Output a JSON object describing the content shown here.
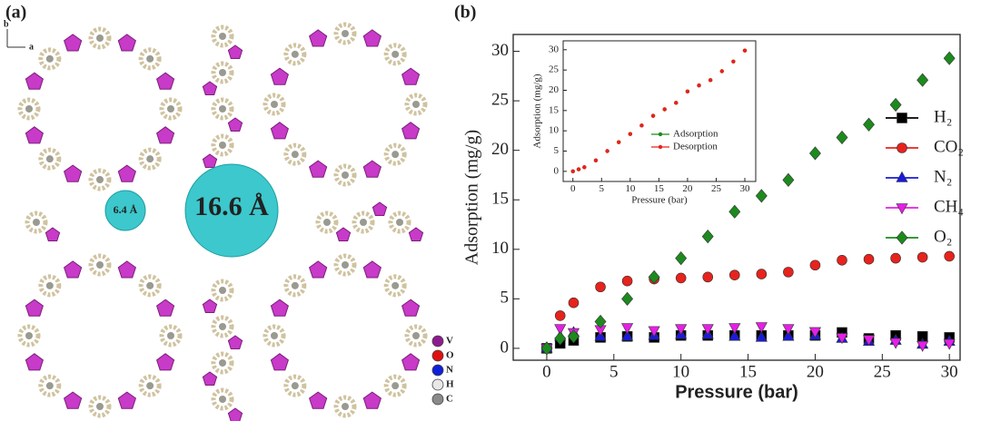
{
  "panel_a": {
    "label": "(a)",
    "axis_labels": [
      "b",
      "a"
    ],
    "pore_labels": [
      "6.4 Å",
      "16.6 Å"
    ],
    "element_legend": [
      "V",
      "O",
      "N",
      "H",
      "C"
    ]
  },
  "chart_data": [
    {
      "type": "line",
      "panel_label": "(b)",
      "x_label": "Pressure (bar)",
      "y_label": "Adsorption (mg/g)",
      "x": [
        0,
        1,
        2,
        4,
        6,
        8,
        10,
        12,
        14,
        16,
        18,
        20,
        22,
        24,
        26,
        28,
        30
      ],
      "xlim": [
        -2.5,
        30.8
      ],
      "xticks": [
        0,
        5,
        10,
        15,
        20,
        25,
        30
      ],
      "ylim": [
        -1.2,
        31.7
      ],
      "yticks": [
        0,
        5,
        10,
        15,
        20,
        25,
        30
      ],
      "legend": "right",
      "series": [
        {
          "name": "H₂",
          "color": "#000000",
          "marker": "square",
          "values": [
            0,
            0.5,
            0.8,
            1.1,
            1.2,
            1.1,
            1.3,
            1.3,
            1.3,
            1.3,
            1.3,
            1.3,
            1.6,
            1.0,
            1.3,
            1.2,
            1.1
          ]
        },
        {
          "name": "CO₂",
          "color": "#e8221c",
          "marker": "circle",
          "values": [
            0,
            3.3,
            4.6,
            6.2,
            6.8,
            7.0,
            7.1,
            7.2,
            7.4,
            7.5,
            7.7,
            8.4,
            8.9,
            9.0,
            9.1,
            9.2,
            9.3
          ]
        },
        {
          "name": "N₂",
          "color": "#1a1adc",
          "marker": "triangle",
          "values": [
            0,
            1.2,
            1.6,
            1.2,
            1.2,
            1.3,
            1.4,
            1.4,
            1.2,
            1.1,
            1.2,
            1.3,
            1.0,
            0.7,
            0.8,
            0.4,
            0.7
          ]
        },
        {
          "name": "CH₄",
          "color": "#e61ee6",
          "marker": "triangle-down",
          "values": [
            0,
            2.0,
            1.6,
            1.9,
            2.1,
            1.8,
            2.0,
            2.0,
            2.1,
            2.2,
            2.0,
            1.7,
            1.1,
            0.9,
            0.6,
            0.3,
            0.5
          ]
        },
        {
          "name": "O₂",
          "color": "#1d8a1d",
          "marker": "diamond",
          "values": [
            0,
            1.0,
            1.2,
            2.7,
            5.0,
            7.2,
            9.1,
            11.3,
            13.8,
            15.4,
            17.0,
            19.7,
            21.3,
            22.6,
            24.6,
            27.1,
            29.3
          ]
        }
      ]
    },
    {
      "type": "line",
      "x_label": "Pressure (bar)",
      "y_label": "Adsorption (mg/g)",
      "x": [
        0,
        1,
        2,
        4,
        6,
        8,
        10,
        12,
        14,
        16,
        18,
        20,
        22,
        24,
        26,
        28,
        30
      ],
      "xlim": [
        -1.7,
        31.9
      ],
      "xticks": [
        0,
        5,
        10,
        15,
        20,
        25,
        30
      ],
      "ylim": [
        -2.5,
        32.2
      ],
      "yticks": [
        0,
        5,
        10,
        15,
        20,
        25,
        30
      ],
      "legend": "center right",
      "series": [
        {
          "name": "Adsorption",
          "color": "#1d8a1d",
          "marker": "dot",
          "values": [
            0,
            0.5,
            1.0,
            2.7,
            5.0,
            7.2,
            9.2,
            11.3,
            13.7,
            15.3,
            16.9,
            19.7,
            21.2,
            22.5,
            24.7,
            27.1,
            29.8
          ]
        },
        {
          "name": "Desorption",
          "color": "#e8221c",
          "marker": "dot",
          "values": [
            0,
            0.5,
            1.0,
            2.7,
            5.0,
            7.2,
            9.2,
            11.3,
            13.7,
            15.3,
            16.9,
            19.7,
            21.2,
            22.5,
            24.7,
            27.1,
            29.8
          ]
        }
      ]
    }
  ]
}
